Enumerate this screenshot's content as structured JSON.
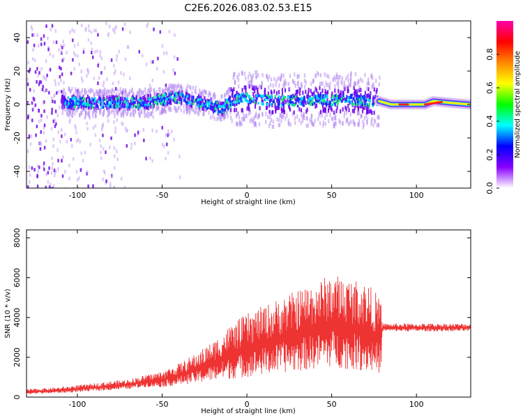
{
  "figure": {
    "title": "C2E6.2026.083.02.53.E15"
  },
  "chart_data": [
    {
      "type": "heatmap",
      "title": "",
      "xlabel": "Height of straight line (km)",
      "ylabel": "Frequency (Hz)",
      "xlim": [
        -130,
        132
      ],
      "ylim": [
        -50,
        50
      ],
      "xticks": [
        -100,
        -50,
        0,
        50,
        100
      ],
      "xtick_labels": [
        "-100",
        "-50",
        "0",
        "50",
        "100"
      ],
      "yticks": [
        -40,
        -20,
        0,
        20,
        40
      ],
      "ytick_labels": [
        "-40",
        "-20",
        "0",
        "20",
        "40"
      ],
      "grid": false,
      "ridge": {
        "x": [
          -112,
          -100,
          -80,
          -60,
          -50,
          -40,
          -30,
          -20,
          -15,
          -10,
          0,
          10,
          20,
          30,
          40,
          50,
          60,
          70,
          78,
          85,
          95,
          105,
          110,
          120,
          132
        ],
        "y": [
          2,
          1,
          1,
          1,
          3,
          4,
          2,
          -1,
          -3,
          2,
          4,
          3,
          2,
          2,
          3,
          2,
          3,
          2,
          2,
          0,
          0,
          0,
          2,
          1,
          0
        ]
      },
      "colorbar": {
        "label": "Normalized spectral amplitude",
        "range": [
          0,
          1
        ],
        "ticks": [
          0.0,
          0.2,
          0.4,
          0.6,
          0.8
        ],
        "tick_labels": [
          "0.0",
          "0.2",
          "0.4",
          "0.6",
          "0.8"
        ],
        "colormap": [
          "#ffffff",
          "#8800ff",
          "#0000ff",
          "#00ffff",
          "#00ff00",
          "#ffff00",
          "#ff8800",
          "#ff0000",
          "#ff00aa"
        ]
      }
    },
    {
      "type": "line",
      "title": "",
      "xlabel": "Height of straight line (km)",
      "ylabel": "SNR (10 * v/v)",
      "xlim": [
        -130,
        132
      ],
      "ylim": [
        0,
        8400
      ],
      "xticks": [
        -100,
        -50,
        0,
        50,
        100
      ],
      "xtick_labels": [
        "-100",
        "-50",
        "0",
        "50",
        "100"
      ],
      "yticks": [
        0,
        2000,
        4000,
        6000,
        8000
      ],
      "ytick_labels": [
        "0",
        "2000",
        "4000",
        "6000",
        "8000"
      ],
      "grid": false,
      "series": [
        {
          "color": "#ee3333",
          "envelope": {
            "x": [
              -130,
              -110,
              -90,
              -70,
              -60,
              -50,
              -40,
              -30,
              -20,
              -10,
              0,
              10,
              20,
              30,
              40,
              50,
              60,
              70,
              75,
              79,
              80,
              90,
              100,
              110,
              120,
              132
            ],
            "lower": [
              150,
              200,
              300,
              400,
              500,
              500,
              600,
              700,
              800,
              900,
              1000,
              1100,
              1200,
              1300,
              1400,
              1500,
              1400,
              1300,
              1200,
              1200,
              3300,
              3300,
              3300,
              3300,
              3300,
              3300
            ],
            "upper": [
              400,
              500,
              700,
              900,
              1100,
              1300,
              1700,
              2200,
              2800,
              3600,
              4200,
              4600,
              5000,
              5400,
              5800,
              6200,
              6000,
              5800,
              5400,
              4800,
              3700,
              3700,
              3700,
              3700,
              3700,
              3700
            ]
          }
        }
      ]
    }
  ]
}
